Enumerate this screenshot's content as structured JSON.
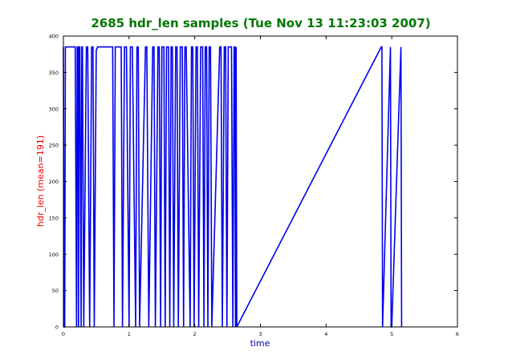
{
  "chart_data": {
    "type": "line",
    "title": "2685 hdr_len samples (Tue Nov 13 11:23:03 2007)",
    "xlabel": "time",
    "ylabel": "hdr_len (mean=191)",
    "xlim": [
      0,
      6
    ],
    "ylim": [
      0,
      400
    ],
    "xticks": [
      0,
      1,
      2,
      3,
      4,
      5,
      6
    ],
    "yticks": [
      0,
      50,
      100,
      150,
      200,
      250,
      300,
      350,
      400
    ],
    "grid": false,
    "legend": "none",
    "colors": {
      "title": "#007700",
      "ylabel": "#ee0000",
      "xlabel": "#0000bb",
      "series": "#0000ee",
      "axes": "#000000",
      "background": "#ffffff"
    },
    "series": [
      {
        "x": [
          0.0,
          0.01,
          0.02,
          0.03,
          0.18,
          0.2,
          0.21,
          0.22,
          0.23,
          0.24,
          0.25,
          0.27,
          0.28,
          0.29,
          0.31,
          0.35,
          0.37,
          0.4,
          0.43,
          0.45,
          0.47,
          0.5,
          0.52,
          0.75,
          0.77,
          0.79,
          0.88,
          0.9,
          0.93,
          0.96,
          1.0,
          1.02,
          1.05,
          1.1,
          1.12,
          1.14,
          1.16,
          1.25,
          1.27,
          1.3,
          1.36,
          1.38,
          1.4,
          1.44,
          1.46,
          1.48,
          1.5,
          1.53,
          1.55,
          1.57,
          1.6,
          1.62,
          1.64,
          1.66,
          1.68,
          1.71,
          1.73,
          1.75,
          1.78,
          1.81,
          1.83,
          1.85,
          1.87,
          1.93,
          1.95,
          1.97,
          1.99,
          2.02,
          2.04,
          2.06,
          2.09,
          2.12,
          2.14,
          2.16,
          2.18,
          2.2,
          2.22,
          2.24,
          2.26,
          2.38,
          2.4,
          2.42,
          2.45,
          2.47,
          2.49,
          2.51,
          2.56,
          2.58,
          2.6,
          2.61,
          2.62,
          2.63,
          2.64,
          4.84,
          4.85,
          4.86,
          4.98,
          4.99,
          5.0,
          5.14,
          5.15
        ],
        "values": [
          385,
          0,
          0,
          385,
          385,
          0,
          385,
          385,
          0,
          385,
          385,
          0,
          385,
          385,
          0,
          385,
          385,
          0,
          385,
          385,
          0,
          380,
          385,
          385,
          0,
          385,
          385,
          0,
          385,
          385,
          0,
          385,
          385,
          0,
          385,
          385,
          0,
          385,
          385,
          0,
          385,
          385,
          0,
          385,
          385,
          0,
          385,
          385,
          0,
          385,
          385,
          0,
          385,
          385,
          0,
          385,
          385,
          0,
          385,
          385,
          0,
          385,
          385,
          0,
          385,
          385,
          0,
          385,
          385,
          0,
          385,
          385,
          0,
          385,
          385,
          0,
          385,
          385,
          0,
          385,
          385,
          0,
          385,
          385,
          0,
          385,
          385,
          0,
          385,
          385,
          0,
          385,
          0,
          385,
          385,
          0,
          385,
          0,
          0,
          385,
          0
        ]
      }
    ]
  }
}
